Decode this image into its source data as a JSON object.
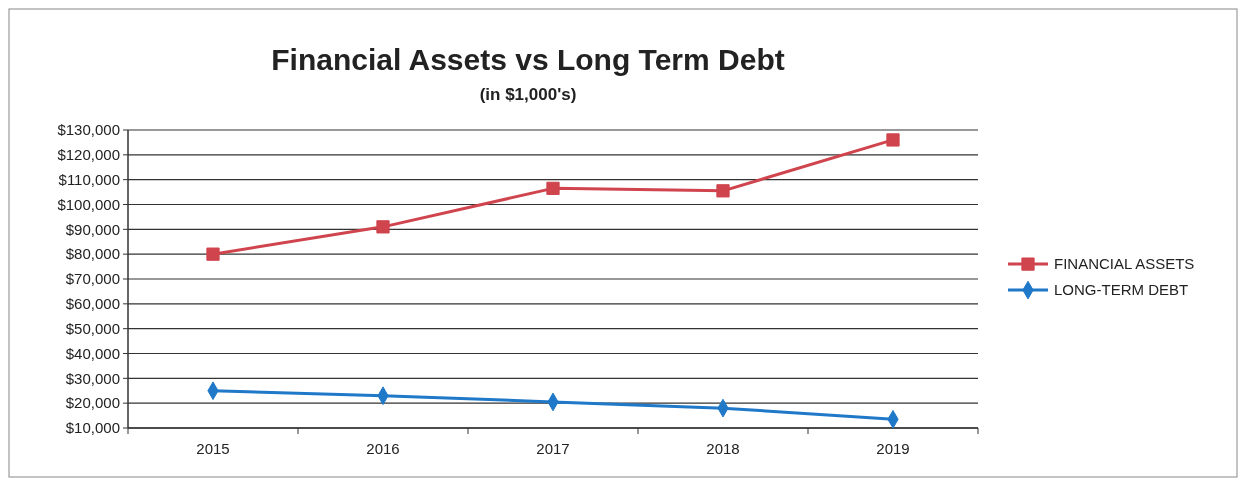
{
  "chart_data": {
    "type": "line",
    "title": "Financial Assets vs Long Term Debt",
    "subtitle": "(in $1,000's)",
    "categories": [
      "2015",
      "2016",
      "2017",
      "2018",
      "2019"
    ],
    "series": [
      {
        "name": "FINANCIAL ASSETS",
        "color": "#d0444e",
        "marker": "square",
        "values": [
          80000,
          91000,
          106500,
          105500,
          126000
        ]
      },
      {
        "name": "LONG-TERM DEBT",
        "color": "#1f78c8",
        "marker": "diamond",
        "values": [
          25000,
          23000,
          20500,
          18000,
          13500
        ]
      }
    ],
    "ylim": [
      10000,
      130000
    ],
    "yticks": [
      {
        "value": 10000,
        "label": "$10,000"
      },
      {
        "value": 20000,
        "label": "$20,000"
      },
      {
        "value": 30000,
        "label": "$30,000"
      },
      {
        "value": 40000,
        "label": "$40,000"
      },
      {
        "value": 50000,
        "label": "$50,000"
      },
      {
        "value": 60000,
        "label": "$60,000"
      },
      {
        "value": 70000,
        "label": "$70,000"
      },
      {
        "value": 80000,
        "label": "$80,000"
      },
      {
        "value": 90000,
        "label": "$90,000"
      },
      {
        "value": 100000,
        "label": "$100,000"
      },
      {
        "value": 110000,
        "label": "$110,000"
      },
      {
        "value": 120000,
        "label": "$120,000"
      },
      {
        "value": 130000,
        "label": "$130,000"
      }
    ],
    "grid": "y",
    "legend": "right"
  }
}
